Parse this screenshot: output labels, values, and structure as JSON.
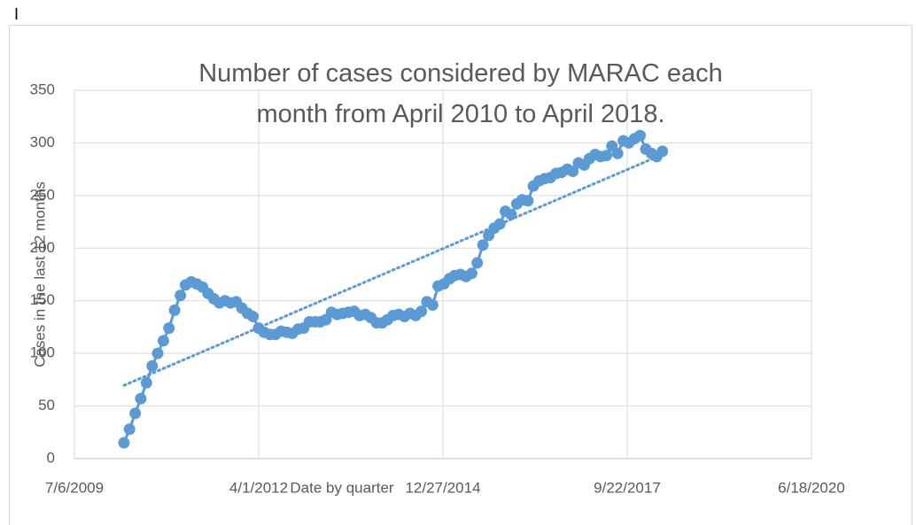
{
  "cursor": "I",
  "chart_data": {
    "type": "line",
    "title": "Number of cases considered by MARAC each month from April 2010 to April 2018.",
    "x_label": "Date by quarter",
    "y_label": "Cases in the last 12 months",
    "xlim": [
      "7/6/2009",
      "6/18/2020"
    ],
    "xticks": [
      "7/6/2009",
      "4/1/2012",
      "12/27/2014",
      "9/22/2017",
      "6/18/2020"
    ],
    "ylim": [
      0,
      350
    ],
    "yticks": [
      0,
      50,
      100,
      150,
      200,
      250,
      300,
      350
    ],
    "grid": true,
    "trendline": "linear",
    "x": [
      "4/1/2010",
      "5/1/2010",
      "6/1/2010",
      "7/1/2010",
      "8/1/2010",
      "9/1/2010",
      "10/1/2010",
      "11/1/2010",
      "12/1/2010",
      "1/1/2011",
      "2/1/2011",
      "3/1/2011",
      "4/1/2011",
      "5/1/2011",
      "6/1/2011",
      "7/1/2011",
      "8/1/2011",
      "9/1/2011",
      "10/1/2011",
      "11/1/2011",
      "12/1/2011",
      "1/1/2012",
      "2/1/2012",
      "3/1/2012",
      "4/1/2012",
      "5/1/2012",
      "6/1/2012",
      "7/1/2012",
      "8/1/2012",
      "9/1/2012",
      "10/1/2012",
      "11/1/2012",
      "12/1/2012",
      "1/1/2013",
      "2/1/2013",
      "3/1/2013",
      "4/1/2013",
      "5/1/2013",
      "6/1/2013",
      "7/1/2013",
      "8/1/2013",
      "9/1/2013",
      "10/1/2013",
      "11/1/2013",
      "12/1/2013",
      "1/1/2014",
      "2/1/2014",
      "3/1/2014",
      "4/1/2014",
      "5/1/2014",
      "6/1/2014",
      "7/1/2014",
      "8/1/2014",
      "9/1/2014",
      "10/1/2014",
      "11/1/2014",
      "12/1/2014",
      "1/1/2015",
      "2/1/2015",
      "3/1/2015",
      "4/1/2015",
      "5/1/2015",
      "6/1/2015",
      "7/1/2015",
      "8/1/2015",
      "9/1/2015",
      "10/1/2015",
      "11/1/2015",
      "12/1/2015",
      "1/1/2016",
      "2/1/2016",
      "3/1/2016",
      "4/1/2016",
      "5/1/2016",
      "6/1/2016",
      "7/1/2016",
      "8/1/2016",
      "9/1/2016",
      "10/1/2016",
      "11/1/2016",
      "12/1/2016",
      "1/1/2017",
      "2/1/2017",
      "3/1/2017",
      "4/1/2017",
      "5/1/2017",
      "6/1/2017",
      "7/1/2017",
      "8/1/2017",
      "9/1/2017",
      "10/1/2017",
      "11/1/2017",
      "12/1/2017",
      "1/1/2018",
      "2/1/2018",
      "3/1/2018",
      "4/1/2018"
    ],
    "series": [
      {
        "color": "#5b9bd5",
        "values": [
          15,
          28,
          43,
          57,
          72,
          88,
          100,
          112,
          124,
          141,
          155,
          165,
          168,
          166,
          163,
          157,
          152,
          148,
          150,
          148,
          149,
          143,
          138,
          135,
          124,
          120,
          118,
          118,
          121,
          120,
          119,
          123,
          124,
          130,
          130,
          130,
          132,
          139,
          137,
          138,
          139,
          140,
          136,
          137,
          134,
          129,
          129,
          132,
          136,
          137,
          135,
          138,
          136,
          140,
          149,
          146,
          164,
          166,
          171,
          174,
          175,
          173,
          176,
          186,
          203,
          212,
          219,
          223,
          235,
          232,
          242,
          246,
          245,
          259,
          264,
          266,
          267,
          271,
          272,
          275,
          273,
          281,
          279,
          285,
          289,
          287,
          288,
          297,
          290,
          302,
          300,
          304,
          307,
          294,
          290,
          287,
          292
        ]
      }
    ]
  }
}
